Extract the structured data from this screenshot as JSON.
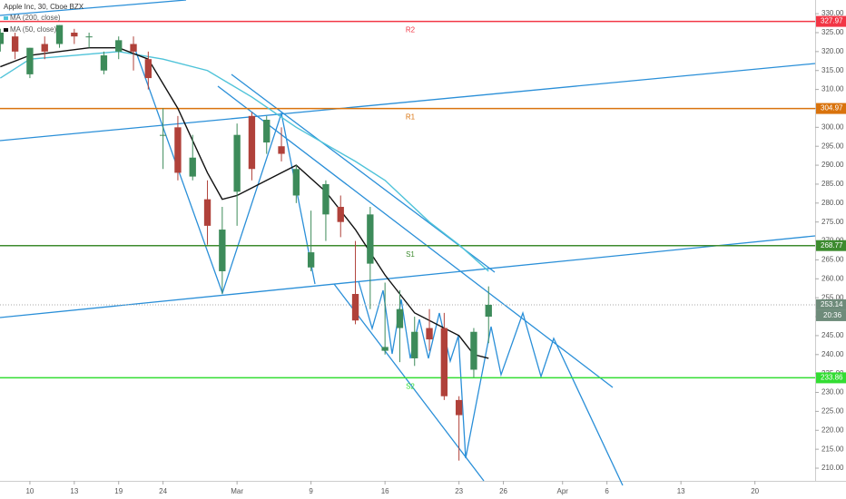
{
  "chart_data": {
    "type": "candlestick",
    "title": "Apple Inc, 30, Cboe BZX",
    "up_color": "#3d8b5a",
    "down_color": "#b0413a",
    "x": [
      -2,
      -1,
      0,
      1,
      2,
      3,
      4,
      5,
      6,
      7,
      8,
      9,
      10,
      11,
      12,
      13,
      14,
      15,
      16,
      17,
      18,
      19,
      20,
      21,
      22,
      23,
      24,
      25,
      26,
      27,
      28,
      29,
      30,
      31
    ],
    "open": [
      322,
      324,
      314,
      322,
      322,
      325,
      324,
      315,
      320,
      322,
      318,
      298,
      300,
      287,
      281,
      262,
      283,
      303,
      296,
      295,
      282,
      263,
      277,
      279,
      256,
      264,
      241,
      247,
      239,
      247,
      247,
      228,
      236,
      250
    ],
    "high": [
      326,
      325,
      321,
      324,
      327,
      326,
      325,
      320,
      324,
      324,
      320,
      305,
      303,
      298,
      286,
      279,
      301,
      304,
      303,
      300,
      290,
      278,
      286,
      282,
      270,
      279,
      259,
      257,
      250,
      252,
      251,
      229,
      247,
      258
    ],
    "low": [
      320,
      318,
      313,
      318,
      321,
      322,
      321,
      314,
      318,
      315,
      310,
      289,
      286,
      286,
      269,
      256,
      274,
      286,
      293,
      291,
      280,
      262,
      270,
      271,
      248,
      252,
      240,
      238,
      237,
      241,
      228,
      212,
      234,
      243
    ],
    "close": [
      325,
      320,
      321,
      320,
      327,
      324,
      324,
      319,
      323,
      320,
      313,
      298,
      288,
      292,
      274,
      273,
      298,
      289,
      302,
      293,
      289,
      267,
      285,
      275,
      249,
      277,
      242,
      252,
      246,
      244,
      229,
      224,
      246,
      253.14
    ],
    "series": [
      {
        "name": "MA (200, close)",
        "color": "#4fc3d9",
        "x": [
          -2,
          0,
          3,
          6,
          9,
          12,
          15,
          18,
          22,
          24,
          27,
          29,
          31
        ],
        "values": [
          313,
          318,
          319,
          320,
          318,
          315,
          308,
          300,
          291,
          286,
          275,
          269,
          262
        ]
      },
      {
        "name": "MA (50, close)",
        "color": "#111111",
        "x": [
          -2,
          0,
          2,
          4,
          6,
          8,
          10,
          12,
          13,
          14,
          16,
          18,
          20,
          22,
          24,
          26,
          28,
          29,
          30,
          31
        ],
        "values": [
          316,
          319,
          320,
          321,
          321,
          318,
          305,
          288,
          281,
          282,
          286,
          290,
          283,
          273,
          261,
          251,
          247,
          245,
          240,
          239
        ]
      }
    ],
    "levels": [
      {
        "name": "R2",
        "value": 327.97,
        "color": "#f23645"
      },
      {
        "name": "R1",
        "value": 304.97,
        "color": "#d9730d"
      },
      {
        "name": "S1",
        "value": 268.77,
        "color": "#3d8b2f"
      },
      {
        "name": "S2",
        "value": 233.86,
        "color": "#33dd33"
      }
    ],
    "last_price": 253.14,
    "countdown": "20:36",
    "xlim": [
      -2.02,
      53.07
    ],
    "xticks": [
      {
        "value": 0,
        "label": "10"
      },
      {
        "value": 3,
        "label": "13"
      },
      {
        "value": 6,
        "label": "19"
      },
      {
        "value": 9,
        "label": "24"
      },
      {
        "value": 14,
        "label": "Mar"
      },
      {
        "value": 19,
        "label": "9"
      },
      {
        "value": 24,
        "label": "16"
      },
      {
        "value": 29,
        "label": "23"
      },
      {
        "value": 32,
        "label": "26"
      },
      {
        "value": 36,
        "label": "Apr"
      },
      {
        "value": 39,
        "label": "6"
      },
      {
        "value": 44,
        "label": "13"
      },
      {
        "value": 49,
        "label": "20"
      }
    ],
    "ylim": [
      206.65,
      333.62
    ],
    "yticks": [
      {
        "value": 210,
        "label": "210.00"
      },
      {
        "value": 215,
        "label": "215.00"
      },
      {
        "value": 220,
        "label": "220.00"
      },
      {
        "value": 225,
        "label": "225.00"
      },
      {
        "value": 230,
        "label": "230.00"
      },
      {
        "value": 235,
        "label": "235.00"
      },
      {
        "value": 240,
        "label": "240.00"
      },
      {
        "value": 245,
        "label": "245.00"
      },
      {
        "value": 250,
        "label": "250.00"
      },
      {
        "value": 255,
        "label": "255.00"
      },
      {
        "value": 260,
        "label": "260.00"
      },
      {
        "value": 265,
        "label": "265.00"
      },
      {
        "value": 270,
        "label": "270.00"
      },
      {
        "value": 275,
        "label": "275.00"
      },
      {
        "value": 280,
        "label": "280.00"
      },
      {
        "value": 285,
        "label": "285.00"
      },
      {
        "value": 290,
        "label": "290.00"
      },
      {
        "value": 295,
        "label": "295.00"
      },
      {
        "value": 300,
        "label": "300.00"
      },
      {
        "value": 305,
        "label": "305.00"
      },
      {
        "value": 310,
        "label": "310.00"
      },
      {
        "value": 315,
        "label": "315.00"
      },
      {
        "value": 320,
        "label": "320.00"
      },
      {
        "value": 325,
        "label": "325.00"
      },
      {
        "value": 330,
        "label": "330.00"
      }
    ]
  }
}
